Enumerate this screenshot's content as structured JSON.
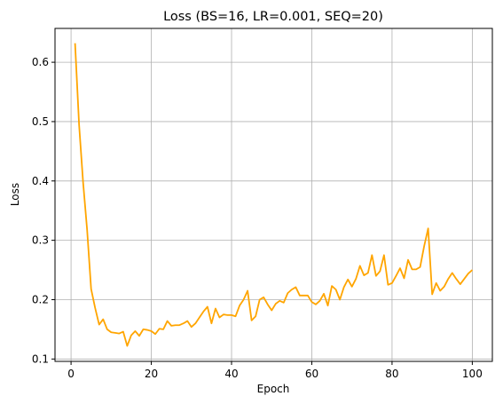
{
  "chart_data": {
    "type": "line",
    "title": "Loss (BS=16, LR=0.001, SEQ=20)",
    "xlabel": "Epoch",
    "ylabel": "Loss",
    "xlim": [
      -4.0,
      105.0
    ],
    "ylim": [
      0.096,
      0.657
    ],
    "xticks": [
      0,
      20,
      40,
      60,
      80,
      100
    ],
    "yticks": [
      0.1,
      0.2,
      0.3,
      0.4,
      0.5,
      0.6
    ],
    "xtick_labels": [
      "0",
      "20",
      "40",
      "60",
      "80",
      "100"
    ],
    "ytick_labels": [
      "0.1",
      "0.2",
      "0.3",
      "0.4",
      "0.5",
      "0.6"
    ],
    "grid": true,
    "legend": "none",
    "series": [
      {
        "color": "#ffa500",
        "x": [
          1,
          2,
          3,
          4,
          5,
          6,
          7,
          8,
          9,
          10,
          11,
          12,
          13,
          14,
          15,
          16,
          17,
          18,
          19,
          20,
          21,
          22,
          23,
          24,
          25,
          26,
          27,
          28,
          29,
          30,
          31,
          32,
          33,
          34,
          35,
          36,
          37,
          38,
          39,
          40,
          41,
          42,
          43,
          44,
          45,
          46,
          47,
          48,
          49,
          50,
          51,
          52,
          53,
          54,
          55,
          56,
          57,
          58,
          59,
          60,
          61,
          62,
          63,
          64,
          65,
          66,
          67,
          68,
          69,
          70,
          71,
          72,
          73,
          74,
          75,
          76,
          77,
          78,
          79,
          80,
          81,
          82,
          83,
          84,
          85,
          86,
          87,
          88,
          89,
          90,
          91,
          92,
          93,
          94,
          95,
          96,
          97,
          98,
          99,
          100
        ],
        "values": [
          0.632,
          0.495,
          0.398,
          0.318,
          0.218,
          0.186,
          0.158,
          0.167,
          0.15,
          0.145,
          0.144,
          0.143,
          0.146,
          0.122,
          0.14,
          0.147,
          0.139,
          0.15,
          0.149,
          0.147,
          0.142,
          0.151,
          0.15,
          0.164,
          0.156,
          0.157,
          0.157,
          0.16,
          0.164,
          0.154,
          0.16,
          0.17,
          0.18,
          0.188,
          0.16,
          0.185,
          0.17,
          0.175,
          0.174,
          0.174,
          0.172,
          0.19,
          0.2,
          0.215,
          0.165,
          0.172,
          0.2,
          0.204,
          0.192,
          0.182,
          0.193,
          0.198,
          0.195,
          0.211,
          0.217,
          0.221,
          0.207,
          0.207,
          0.207,
          0.196,
          0.192,
          0.198,
          0.21,
          0.19,
          0.223,
          0.217,
          0.2,
          0.221,
          0.234,
          0.222,
          0.235,
          0.257,
          0.241,
          0.245,
          0.275,
          0.24,
          0.248,
          0.275,
          0.225,
          0.228,
          0.24,
          0.253,
          0.236,
          0.267,
          0.251,
          0.251,
          0.255,
          0.29,
          0.32,
          0.209,
          0.228,
          0.215,
          0.222,
          0.235,
          0.245,
          0.235,
          0.226,
          0.235,
          0.244,
          0.25
        ]
      }
    ]
  }
}
